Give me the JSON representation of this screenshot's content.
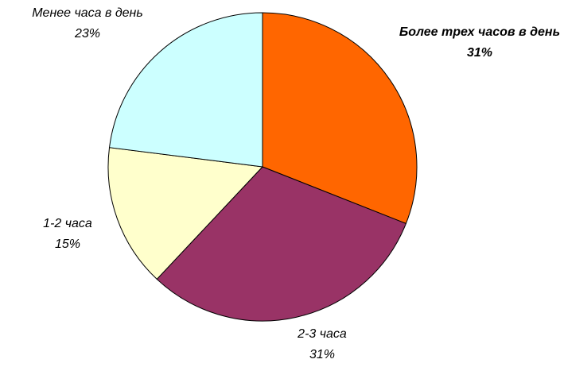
{
  "chart_data": {
    "type": "pie",
    "categories": [
      "Более трех часов в день",
      "2-3 часа",
      "1-2 часа",
      "Менее часа в день"
    ],
    "values": [
      31,
      31,
      15,
      23
    ],
    "value_labels": [
      "31%",
      "31%",
      "15%",
      "23%"
    ],
    "colors": [
      "#FF6600",
      "#993366",
      "#FFFFCC",
      "#CCFFFF"
    ]
  }
}
